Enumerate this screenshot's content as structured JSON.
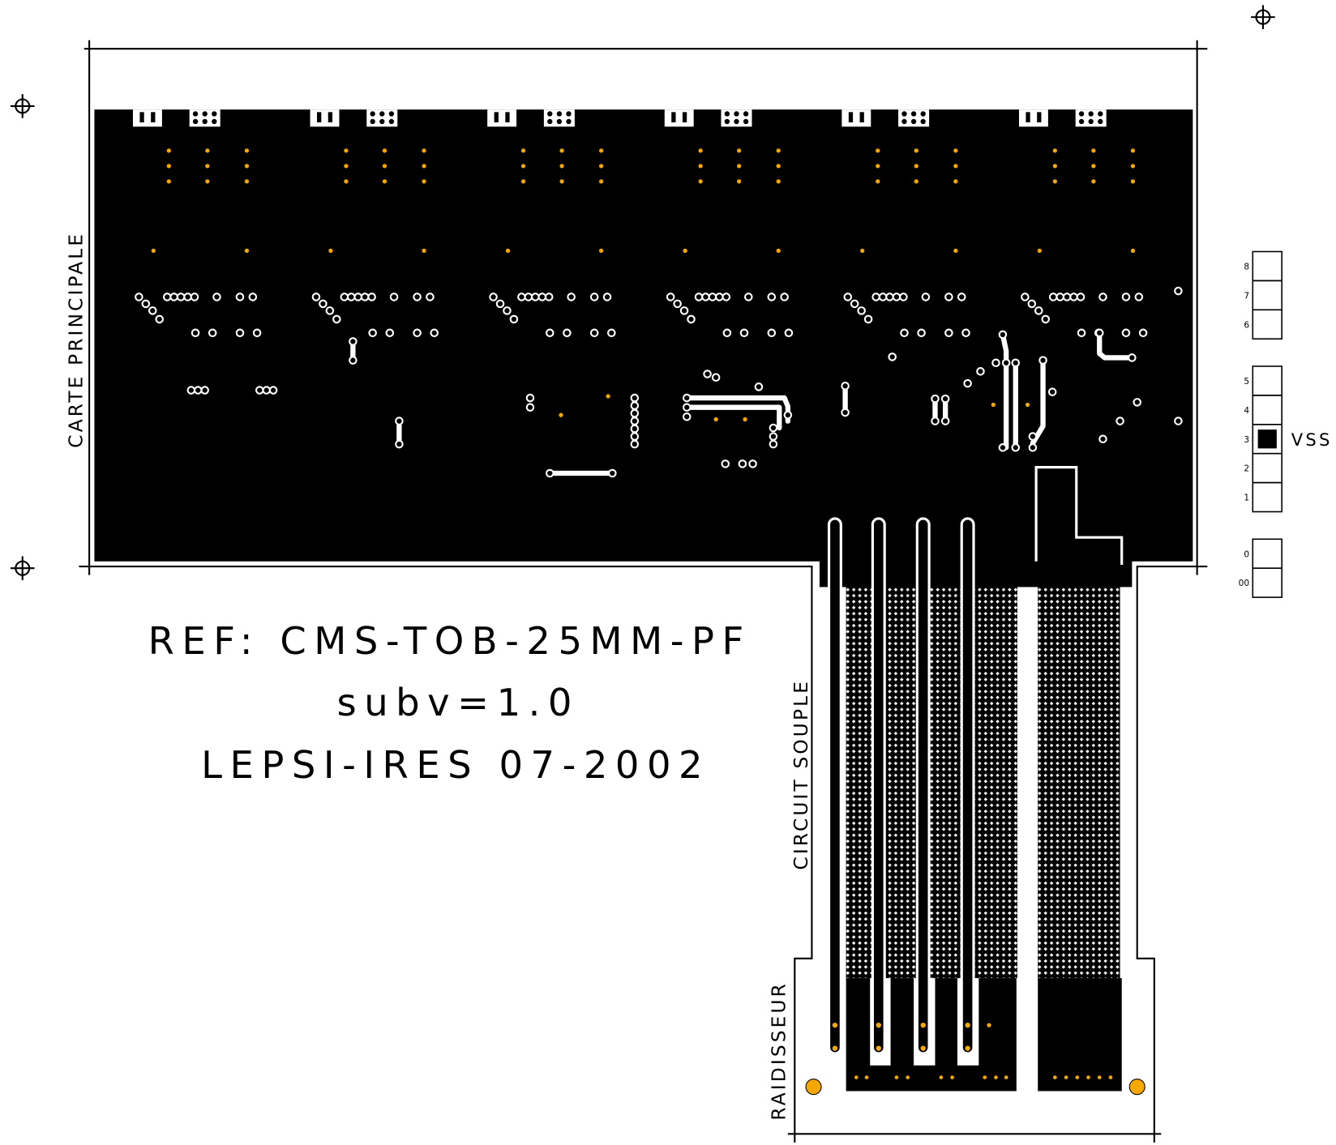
{
  "labels": {
    "board": "CARTE PRINCIPALE",
    "flex": "CIRCUIT SOUPLE",
    "stiffener": "RAIDISSEUR"
  },
  "reference": [
    "REF: CMS-TOB-25MM-PF",
    "subv=1.0",
    "LEPSI-IRES 07-2002"
  ],
  "layers": {
    "vss": "VSS",
    "numbers": [
      "8",
      "7",
      "6",
      "5",
      "4",
      "3",
      "2",
      "1",
      "0",
      "00"
    ]
  }
}
